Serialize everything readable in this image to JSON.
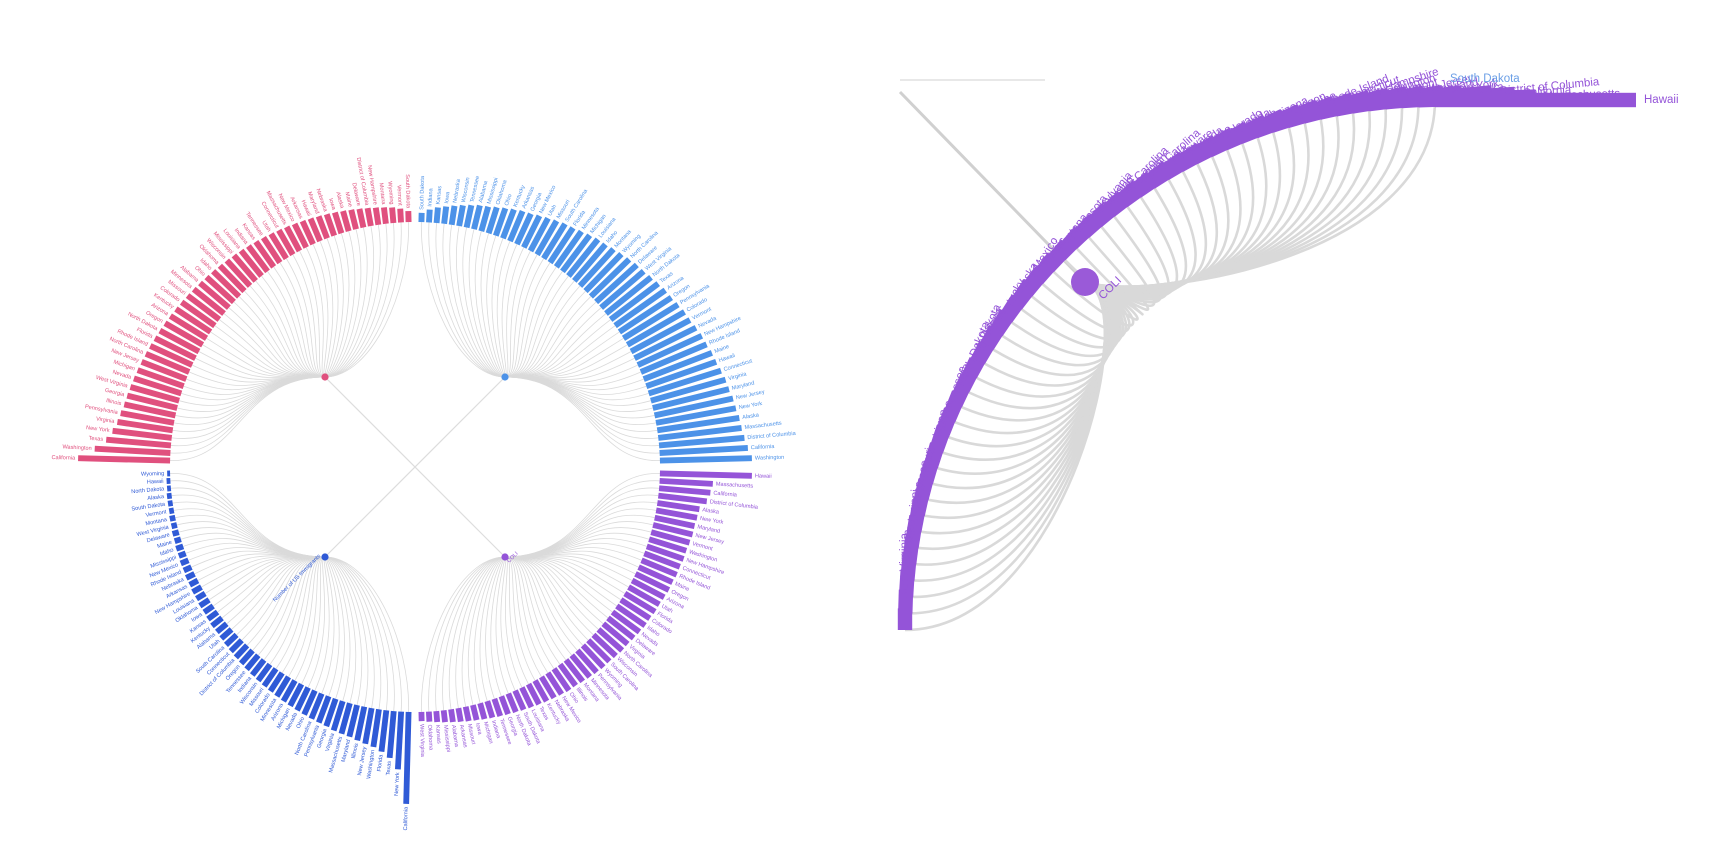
{
  "colors": {
    "linkGray": "#dadada",
    "axisGray": "#dddddd",
    "q1": "#e0507e",
    "q2": "#4c92e8",
    "q3": "#2f5ad6",
    "q4": "#9454d8"
  },
  "chart_data": [
    {
      "type": "bar",
      "layout": "radial",
      "quadrant": "top-right",
      "value_scale": "relative (bar lengths estimated, 1.0 = longest bar)",
      "categories": [
        "South Dakota",
        "Indiana",
        "Kansas",
        "Iowa",
        "Nebraska",
        "Wisconsin",
        "Tennessee",
        "Alabama",
        "Mississippi",
        "Oklahoma",
        "Ohio",
        "Kentucky",
        "Arkansas",
        "Georgia",
        "New Mexico",
        "Utah",
        "Missouri",
        "South Carolina",
        "Florida",
        "Minnesota",
        "Michigan",
        "Louisiana",
        "Idaho",
        "Montana",
        "Wyoming",
        "North Carolina",
        "Delaware",
        "West Virginia",
        "North Dakota",
        "Texas",
        "Arizona",
        "Oregon",
        "Pennsylvania",
        "Colorado",
        "Vermont",
        "Nevada",
        "New Hampshire",
        "Rhode Island",
        "Maine",
        "Hawaii",
        "Connecticut",
        "Virginia",
        "Maryland",
        "New Jersey",
        "New York",
        "Alaska",
        "Massachusetts",
        "District of Columbia",
        "California",
        "Washington"
      ],
      "values": [
        0.08,
        0.12,
        0.15,
        0.17,
        0.19,
        0.21,
        0.23,
        0.25,
        0.26,
        0.28,
        0.3,
        0.32,
        0.34,
        0.35,
        0.37,
        0.39,
        0.41,
        0.43,
        0.44,
        0.46,
        0.48,
        0.5,
        0.51,
        0.53,
        0.55,
        0.57,
        0.59,
        0.6,
        0.62,
        0.64,
        0.66,
        0.67,
        0.69,
        0.71,
        0.72,
        0.74,
        0.76,
        0.77,
        0.79,
        0.8,
        0.82,
        0.84,
        0.85,
        0.87,
        0.88,
        0.9,
        0.91,
        0.93,
        0.96,
        1.0
      ]
    },
    {
      "type": "bar",
      "layout": "radial",
      "quadrant": "top-left",
      "value_scale": "relative (bar lengths estimated, 1.0 = longest bar)",
      "categories": [
        "California",
        "Washington",
        "Texas",
        "New York",
        "Virginia",
        "Pennsylvania",
        "Illinois",
        "Georgia",
        "West Virginia",
        "Nevada",
        "Michigan",
        "New Jersey",
        "North Carolina",
        "Rhode Island",
        "Florida",
        "North Dakota",
        "Oregon",
        "Arizona",
        "Kentucky",
        "Colorado",
        "Missouri",
        "Minnesota",
        "Alabama",
        "Ohio",
        "Idaho",
        "Oklahoma",
        "Wisconsin",
        "Mississippi",
        "Louisiana",
        "Indiana",
        "Kansas",
        "Tennessee",
        "Utah",
        "Connecticut",
        "Massachusetts",
        "New Mexico",
        "Arkansas",
        "Hawaii",
        "Maryland",
        "Nebraska",
        "Iowa",
        "Alaska",
        "Maine",
        "Delaware",
        "District of Columbia",
        "New Hampshire",
        "Montana",
        "Wyoming",
        "Vermont",
        "South Dakota"
      ],
      "values": [
        1.0,
        0.82,
        0.7,
        0.64,
        0.6,
        0.58,
        0.56,
        0.55,
        0.54,
        0.53,
        0.52,
        0.51,
        0.5,
        0.49,
        0.48,
        0.47,
        0.46,
        0.45,
        0.44,
        0.43,
        0.42,
        0.41,
        0.4,
        0.39,
        0.38,
        0.37,
        0.36,
        0.35,
        0.34,
        0.33,
        0.32,
        0.31,
        0.3,
        0.29,
        0.28,
        0.27,
        0.26,
        0.25,
        0.24,
        0.23,
        0.22,
        0.21,
        0.2,
        0.19,
        0.18,
        0.17,
        0.16,
        0.15,
        0.13,
        0.1
      ]
    },
    {
      "type": "bar",
      "layout": "radial",
      "quadrant": "bottom-left",
      "center_label": "Number of US Immigrants",
      "value_scale": "relative (bar lengths estimated, 1.0 = longest bar)",
      "categories": [
        "Wyoming",
        "Hawaii",
        "North Dakota",
        "Alaska",
        "South Dakota",
        "Vermont",
        "Montana",
        "West Virginia",
        "Delaware",
        "Maine",
        "Idaho",
        "Mississippi",
        "New Mexico",
        "Rhode Island",
        "Nebraska",
        "Arkansas",
        "New Hampshire",
        "Louisiana",
        "Oklahoma",
        "Iowa",
        "Kansas",
        "Kentucky",
        "Alabama",
        "Utah",
        "South Carolina",
        "Connecticut",
        "District of Columbia",
        "Oregon",
        "Tennessee",
        "Indiana",
        "Wisconsin",
        "Missouri",
        "Colorado",
        "Minnesota",
        "Arizona",
        "Michigan",
        "Nevada",
        "Ohio",
        "North Carolina",
        "Pennsylvania",
        "Georgia",
        "Virginia",
        "Massachusetts",
        "Maryland",
        "Illinois",
        "New Jersey",
        "Washington",
        "Florida",
        "Texas",
        "New York",
        "California"
      ],
      "values": [
        0.01,
        0.02,
        0.02,
        0.03,
        0.03,
        0.03,
        0.04,
        0.04,
        0.05,
        0.05,
        0.06,
        0.06,
        0.07,
        0.07,
        0.08,
        0.08,
        0.09,
        0.09,
        0.1,
        0.1,
        0.11,
        0.12,
        0.12,
        0.13,
        0.14,
        0.15,
        0.16,
        0.17,
        0.18,
        0.19,
        0.2,
        0.21,
        0.22,
        0.23,
        0.24,
        0.25,
        0.26,
        0.27,
        0.28,
        0.29,
        0.3,
        0.32,
        0.33,
        0.34,
        0.36,
        0.38,
        0.4,
        0.44,
        0.5,
        0.62,
        1.0
      ]
    },
    {
      "type": "bar",
      "layout": "radial",
      "quadrant": "bottom-right",
      "center_label": "COLI",
      "value_scale": "relative (bar lengths estimated, 1.0 = longest bar)",
      "categories": [
        "Hawaii",
        "Massachusetts",
        "California",
        "District of Columbia",
        "Alaska",
        "New York",
        "Maryland",
        "New Jersey",
        "Vermont",
        "Washington",
        "New Hampshire",
        "Connecticut",
        "Rhode Island",
        "Maine",
        "Oregon",
        "Arizona",
        "Utah",
        "Florida",
        "Colorado",
        "Idaho",
        "Nevada",
        "Delaware",
        "Virginia",
        "North Carolina",
        "Wisconsin",
        "South Carolina",
        "Wyoming",
        "Pennsylvania",
        "Minnesota",
        "Montana",
        "Illinois",
        "Ohio",
        "New Mexico",
        "Nebraska",
        "Kentucky",
        "Texas",
        "Louisiana",
        "South Dakota",
        "North Dakota",
        "Georgia",
        "Tennessee",
        "Indiana",
        "Michigan",
        "Iowa",
        "Missouri",
        "Arkansas",
        "Alabama",
        "Mississippi",
        "Kansas",
        "Oklahoma",
        "West Virginia"
      ],
      "values": [
        1.0,
        0.57,
        0.55,
        0.52,
        0.45,
        0.44,
        0.43,
        0.43,
        0.42,
        0.41,
        0.41,
        0.4,
        0.4,
        0.39,
        0.39,
        0.38,
        0.37,
        0.37,
        0.36,
        0.36,
        0.35,
        0.34,
        0.33,
        0.33,
        0.32,
        0.31,
        0.31,
        0.3,
        0.29,
        0.28,
        0.27,
        0.27,
        0.26,
        0.25,
        0.24,
        0.23,
        0.22,
        0.21,
        0.2,
        0.19,
        0.18,
        0.17,
        0.16,
        0.15,
        0.14,
        0.13,
        0.12,
        0.11,
        0.1,
        0.09,
        0.08
      ]
    }
  ],
  "zoom_view": {
    "center_label": "COLI",
    "top_cut_label": "South Dakota"
  }
}
